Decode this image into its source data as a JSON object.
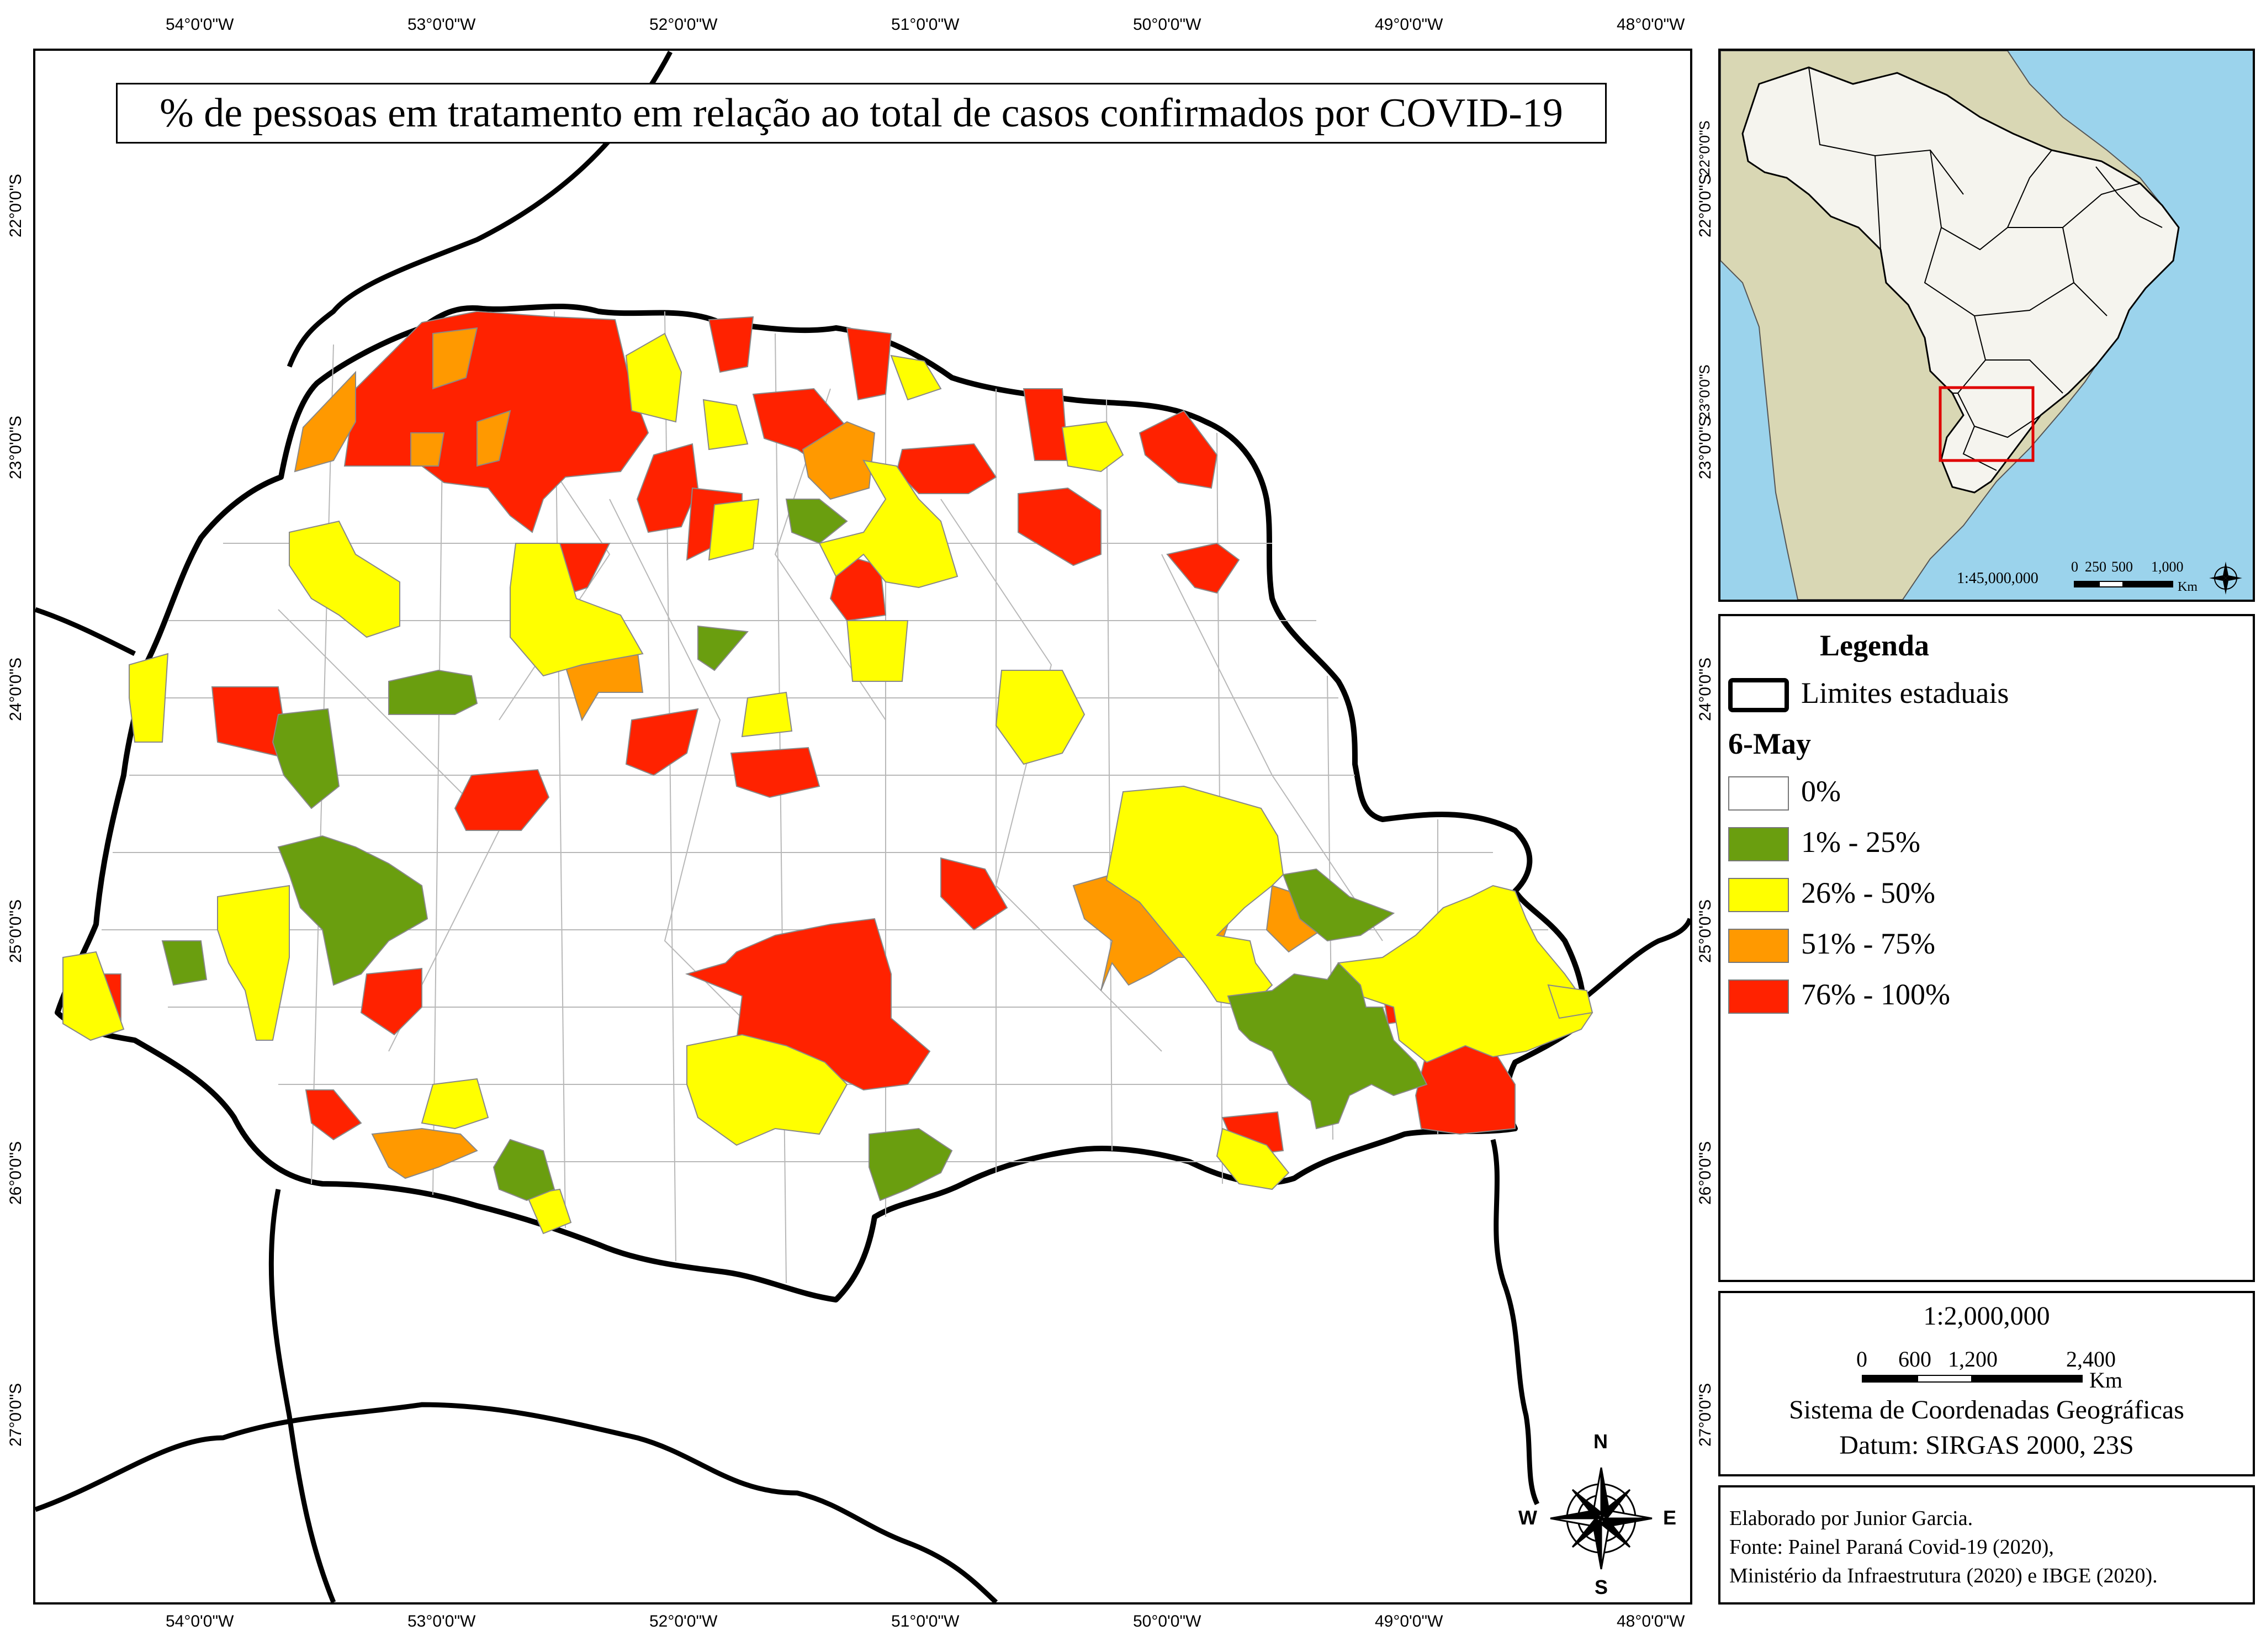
{
  "title": "% de pessoas em tratamento em relação ao total de casos confirmados por COVID-19",
  "longitude_ticks": [
    "54°0'0\"W",
    "53°0'0\"W",
    "52°0'0\"W",
    "51°0'0\"W",
    "50°0'0\"W",
    "49°0'0\"W",
    "48°0'0\"W"
  ],
  "latitude_ticks": [
    "22°0'0\"S",
    "23°0'0\"S",
    "24°0'0\"S",
    "25°0'0\"S",
    "26°0'0\"S",
    "27°0'0\"S"
  ],
  "inset": {
    "scale": "1:45,000,000",
    "scale_bar_labels": [
      "0",
      "250",
      "500",
      "1,000"
    ],
    "scale_unit": "Km"
  },
  "legend": {
    "title": "Legenda",
    "boundary_label": "Limites estaduais",
    "date_label": "6-May",
    "classes": [
      {
        "label": "0%",
        "color": "#ffffff"
      },
      {
        "label": "1% - 25%",
        "color": "#6a9e0f"
      },
      {
        "label": "26% - 50%",
        "color": "#ffff00"
      },
      {
        "label": "51% - 75%",
        "color": "#ff9900"
      },
      {
        "label": "76% - 100%",
        "color": "#ff2200"
      }
    ]
  },
  "scale_box": {
    "scale": "1:2,000,000",
    "bar_labels": [
      "0",
      "600",
      "1,200",
      "2,400"
    ],
    "unit": "Km",
    "crs_line1": "Sistema de Coordenadas Geográficas",
    "crs_line2": "Datum: SIRGAS 2000, 23S"
  },
  "north_arrow": {
    "n": "N",
    "s": "S",
    "e": "E",
    "w": "W"
  },
  "credits": {
    "line1": "Elaborado por Junior Garcia.",
    "line2": "Fonte: Painel Paraná Covid-19 (2020),",
    "line3": "Ministério da Infraestrutura (2020) e IBGE (2020)."
  }
}
